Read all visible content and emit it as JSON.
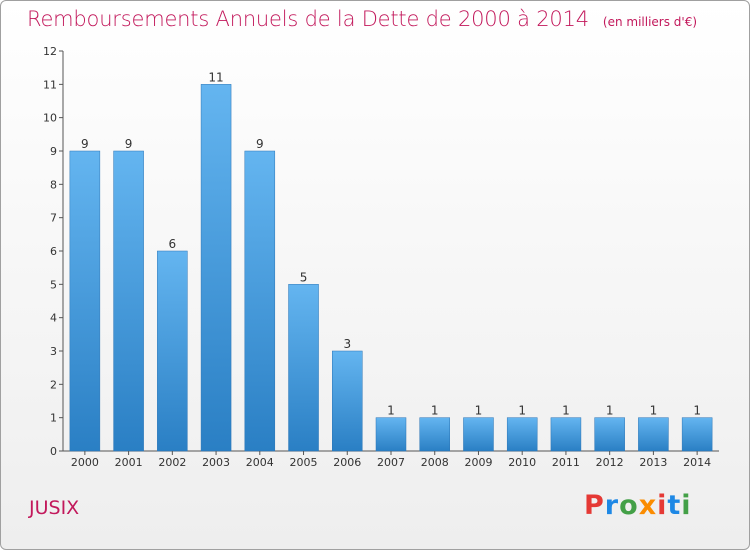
{
  "header": {
    "title": "Remboursements Annuels de la Dette de 2000 à 2014",
    "subtitle": "(en milliers d'€)"
  },
  "footer": {
    "commune": "JUSIX",
    "brand": "Proxiti"
  },
  "colors": {
    "title": "#c2185b",
    "bar_top": "#64b5f0",
    "bar_bottom": "#2a7fc4",
    "brand_letters": [
      "#e53935",
      "#1e88e5",
      "#43a047",
      "#fb8c00",
      "#e53935",
      "#1e88e5",
      "#43a047"
    ]
  },
  "chart_data": {
    "type": "bar",
    "title": "Remboursements Annuels de la Dette de 2000 à 2014",
    "subtitle": "(en milliers d'€)",
    "xlabel": "",
    "ylabel": "",
    "categories": [
      "2000",
      "2001",
      "2002",
      "2003",
      "2004",
      "2005",
      "2006",
      "2007",
      "2008",
      "2009",
      "2010",
      "2011",
      "2012",
      "2013",
      "2014"
    ],
    "values": [
      9,
      9,
      6,
      11,
      9,
      5,
      3,
      1,
      1,
      1,
      1,
      1,
      1,
      1,
      1
    ],
    "ylim": [
      0,
      12
    ],
    "yticks": [
      0,
      1,
      2,
      3,
      4,
      5,
      6,
      7,
      8,
      9,
      10,
      11,
      12
    ],
    "grid": false,
    "legend": "none",
    "data_labels": true
  }
}
